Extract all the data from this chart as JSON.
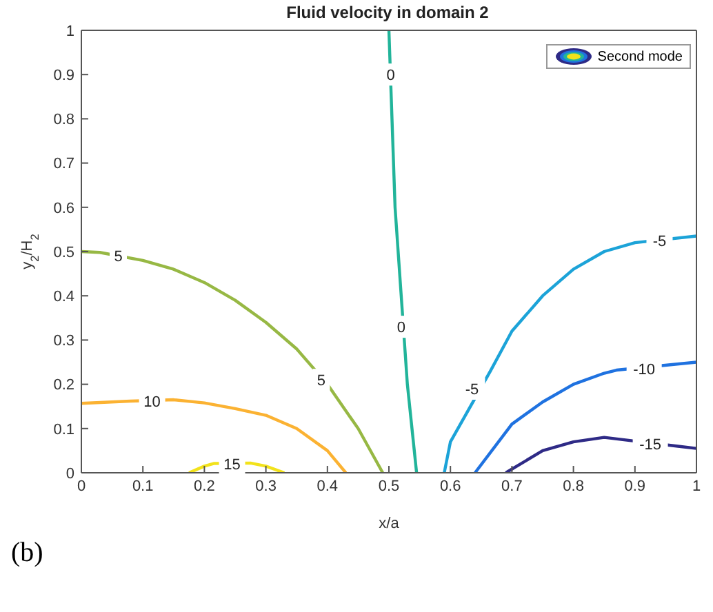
{
  "chart_data": {
    "type": "line",
    "title": "Fluid velocity in domain 2",
    "xlabel": "x/a",
    "ylabel": "y$_{2}$/H$_{2}$",
    "legend_title": "Second mode",
    "annotations": [
      "(b)",
      {
        "text": "15",
        "x": 0.245,
        "y": 0.02
      },
      {
        "text": "10",
        "x": 0.115,
        "y": 0.162
      },
      {
        "text": "5",
        "x": 0.06,
        "y": 0.49
      },
      {
        "text": "5",
        "x": 0.39,
        "y": 0.21
      },
      {
        "text": "0",
        "x": 0.503,
        "y": 0.9
      },
      {
        "text": "0",
        "x": 0.52,
        "y": 0.33
      },
      {
        "text": "-5",
        "x": 0.94,
        "y": 0.525
      },
      {
        "text": "-5",
        "x": 0.635,
        "y": 0.19
      },
      {
        "text": "-10",
        "x": 0.915,
        "y": 0.235
      },
      {
        "text": "-15",
        "x": 0.925,
        "y": 0.065
      }
    ],
    "xlim": [
      0,
      1
    ],
    "ylim": [
      0,
      1
    ],
    "xticks": [
      0,
      0.1,
      0.2,
      0.3,
      0.4,
      0.5,
      0.6,
      0.7,
      0.8,
      0.9,
      1
    ],
    "yticks": [
      0,
      0.1,
      0.2,
      0.3,
      0.4,
      0.5,
      0.6,
      0.7,
      0.8,
      0.9,
      1
    ],
    "grid": false,
    "marker": "none",
    "line_style": "solid",
    "series": [
      {
        "color": "#f2e21b",
        "x": [
          0.175,
          0.2,
          0.215,
          0.275,
          0.3,
          0.33
        ],
        "values": [
          0,
          0.015,
          0.021,
          0.022,
          0.015,
          0
        ]
      },
      {
        "color": "#fbb232",
        "x": [
          0,
          0.08,
          0.15,
          0.2,
          0.25,
          0.3,
          0.35,
          0.4,
          0.43
        ],
        "values": [
          0.157,
          0.162,
          0.165,
          0.158,
          0.145,
          0.13,
          0.1,
          0.05,
          0
        ]
      },
      {
        "color": "#97b844",
        "x": [
          0,
          0.03,
          0.1,
          0.15,
          0.2,
          0.25,
          0.3,
          0.35,
          0.4,
          0.45,
          0.49
        ],
        "values": [
          0.5,
          0.498,
          0.48,
          0.46,
          0.43,
          0.39,
          0.34,
          0.28,
          0.2,
          0.1,
          0
        ]
      },
      {
        "color": "#22b49a",
        "x": [
          0.5,
          0.505,
          0.51,
          0.52,
          0.53,
          0.545
        ],
        "values": [
          1,
          0.8,
          0.6,
          0.4,
          0.2,
          0
        ]
      },
      {
        "color": "#1ca3d8",
        "x": [
          0.59,
          0.6,
          0.665,
          0.7,
          0.75,
          0.8,
          0.85,
          0.9,
          1
        ],
        "values": [
          0,
          0.07,
          0.23,
          0.32,
          0.4,
          0.46,
          0.5,
          0.52,
          0.535
        ]
      },
      {
        "color": "#1f72e0",
        "x": [
          0.64,
          0.7,
          0.75,
          0.8,
          0.85,
          0.87,
          1
        ],
        "values": [
          0,
          0.11,
          0.16,
          0.2,
          0.225,
          0.232,
          0.25
        ]
      },
      {
        "color": "#2e2a86",
        "x": [
          0.69,
          0.75,
          0.8,
          0.85,
          0.88,
          0.97,
          1
        ],
        "values": [
          0,
          0.05,
          0.07,
          0.08,
          0.075,
          0.06,
          0.055
        ]
      }
    ]
  }
}
